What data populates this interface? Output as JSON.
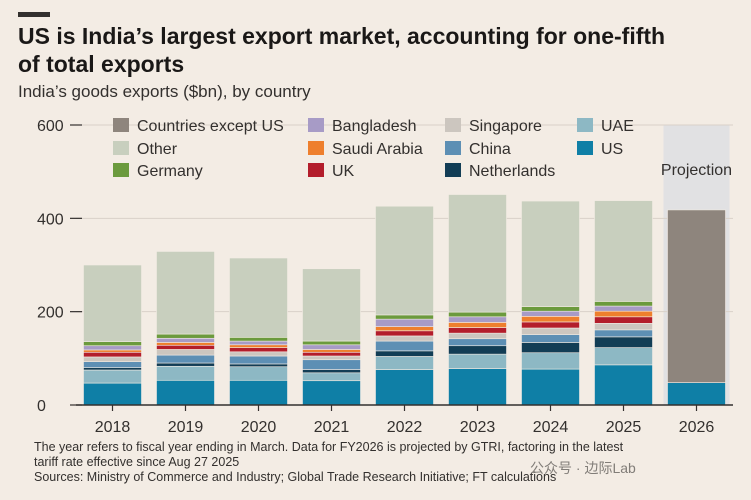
{
  "title_line1": "US is India’s largest export market, accounting for one-fifth",
  "title_line2": "of total exports",
  "subtitle": "India’s goods exports ($bn), by country",
  "footnote_line1": "The year refers to fiscal year ending in March. Data for FY2026 is projected by GTRI, factoring in the latest",
  "footnote_line2": "tariff rate effective since Aug 27 2025",
  "sources": "Sources: Ministry of Commerce and Industry; Global Trade Research Initiative; FT calculations",
  "watermark": "公众号 · 边际Lab",
  "chart_data": {
    "type": "bar",
    "stacked": true,
    "title": "US is India’s largest export market, accounting for one-fifth of total exports",
    "ylabel": "India’s goods exports ($bn), by country",
    "ylim": [
      0,
      600
    ],
    "yticks": [
      0,
      200,
      400,
      600
    ],
    "categories": [
      "2018",
      "2019",
      "2020",
      "2021",
      "2022",
      "2023",
      "2024",
      "2025",
      "2026"
    ],
    "projection_label": "Projection",
    "projection_category": "2026",
    "legend": [
      [
        "Countries except US",
        "Bangladesh",
        "Singapore",
        "UAE"
      ],
      [
        "Other",
        "Saudi Arabia",
        "China",
        "US"
      ],
      [
        "Germany",
        "UK",
        "Netherlands"
      ]
    ],
    "series": [
      {
        "name": "US",
        "color": "#0f7fa6",
        "values": [
          47,
          53,
          53,
          52,
          76,
          78,
          77,
          86,
          48
        ]
      },
      {
        "name": "UAE",
        "color": "#8db8c4",
        "values": [
          28,
          30,
          29,
          17,
          28,
          31,
          35,
          37,
          0
        ]
      },
      {
        "name": "Netherlands",
        "color": "#123d55",
        "values": [
          5,
          7,
          6,
          7,
          12,
          18,
          22,
          23,
          0
        ]
      },
      {
        "name": "China",
        "color": "#5d8fb4",
        "values": [
          13,
          17,
          17,
          21,
          21,
          15,
          17,
          15,
          0
        ]
      },
      {
        "name": "Singapore",
        "color": "#ccc6bf",
        "values": [
          10,
          12,
          9,
          8,
          11,
          12,
          14,
          14,
          0
        ]
      },
      {
        "name": "UK",
        "color": "#b31d2b",
        "values": [
          10,
          9,
          9,
          8,
          11,
          12,
          13,
          14,
          0
        ]
      },
      {
        "name": "Saudi Arabia",
        "color": "#ee7f2d",
        "values": [
          5,
          6,
          6,
          6,
          9,
          11,
          12,
          12,
          0
        ]
      },
      {
        "name": "Bangladesh",
        "color": "#a79bc6",
        "values": [
          9,
          9,
          8,
          10,
          16,
          12,
          11,
          11,
          0
        ]
      },
      {
        "name": "Germany",
        "color": "#6b9a3d",
        "values": [
          9,
          9,
          8,
          8,
          9,
          10,
          10,
          10,
          0
        ]
      },
      {
        "name": "Other",
        "color": "#c8cfbe",
        "values": [
          164,
          177,
          170,
          155,
          233,
          252,
          226,
          216,
          0
        ]
      },
      {
        "name": "Countries except US",
        "color": "#8e857d",
        "values": [
          0,
          0,
          0,
          0,
          0,
          0,
          0,
          0,
          370
        ]
      }
    ]
  }
}
